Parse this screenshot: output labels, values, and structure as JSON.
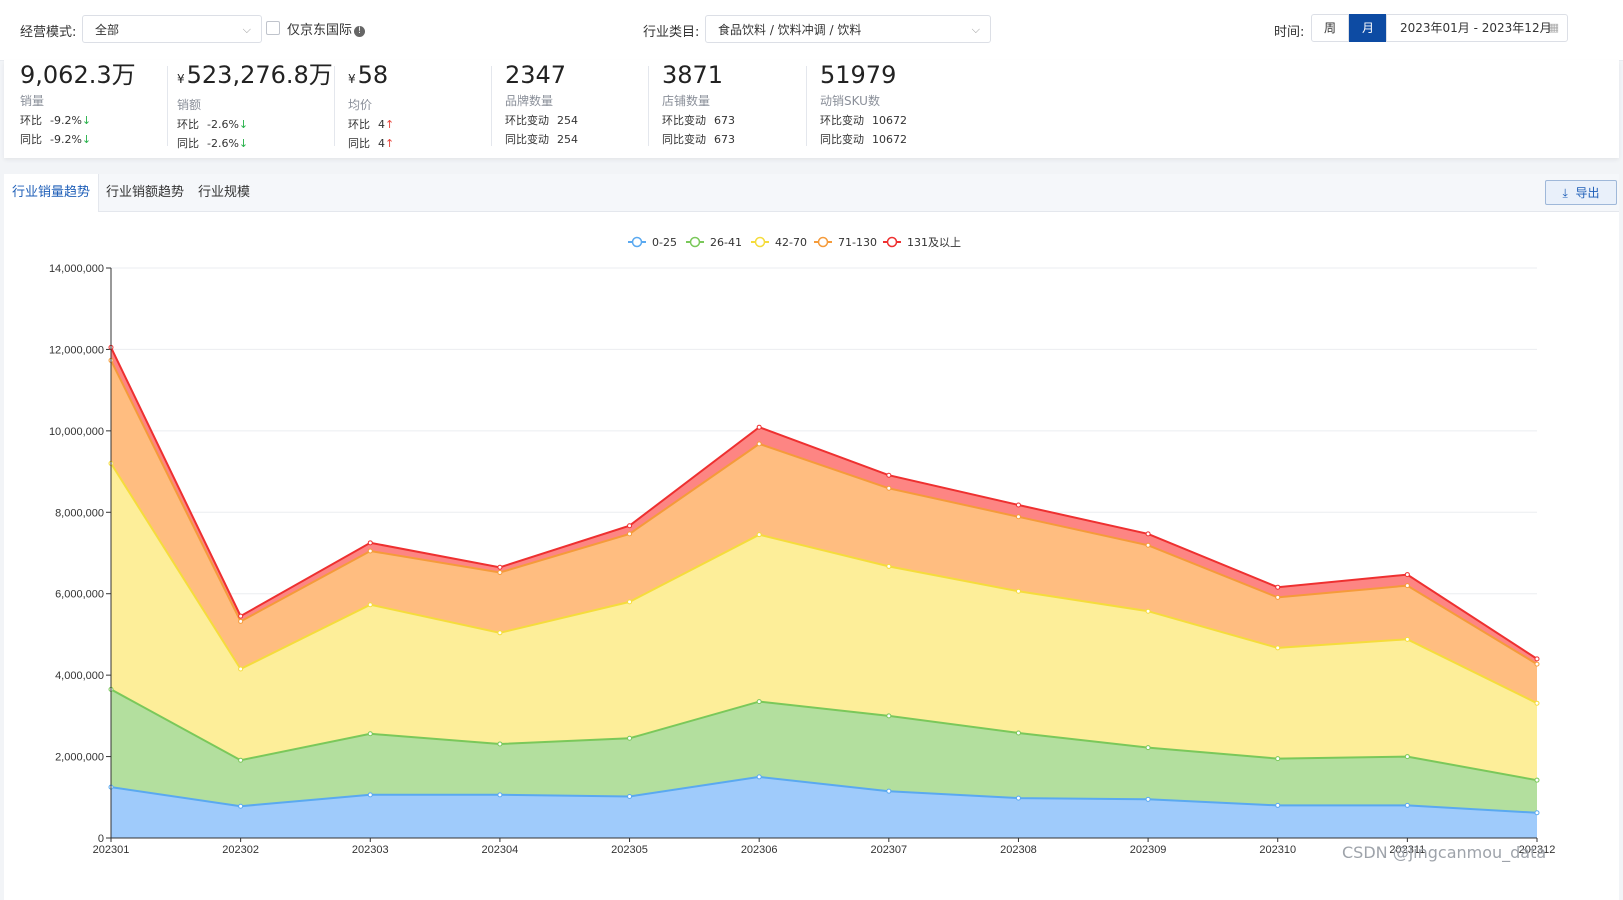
{
  "filters": {
    "mode_label": "经营模式:",
    "mode_value": "全部",
    "jd_intl_label": "仅京东国际",
    "category_label": "行业类目:",
    "category_value": "食品饮料 / 饮料冲调 / 饮料",
    "time_label": "时间:",
    "period_week": "周",
    "period_month": "月",
    "date_range": "2023年01月 - 2023年12月"
  },
  "stats": [
    {
      "value": "9,062.3万",
      "currency": "",
      "name": "销量",
      "r1_label": "环比",
      "r1_value": "-9.2%",
      "r1_dir": "↓",
      "r2_label": "同比",
      "r2_value": "-9.2%",
      "r2_dir": "↓"
    },
    {
      "value": "523,276.8万",
      "currency": "¥",
      "name": "销额",
      "r1_label": "环比",
      "r1_value": "-2.6%",
      "r1_dir": "↓",
      "r2_label": "同比",
      "r2_value": "-2.6%",
      "r2_dir": "↓"
    },
    {
      "value": "58",
      "currency": "¥",
      "name": "均价",
      "r1_label": "环比",
      "r1_value": "4",
      "r1_dir": "↑",
      "r2_label": "同比",
      "r2_value": "4",
      "r2_dir": "↑"
    },
    {
      "value": "2347",
      "currency": "",
      "name": "品牌数量",
      "r1_label": "环比变动",
      "r1_value": "254",
      "r1_dir": "",
      "r2_label": "同比变动",
      "r2_value": "254",
      "r2_dir": ""
    },
    {
      "value": "3871",
      "currency": "",
      "name": "店铺数量",
      "r1_label": "环比变动",
      "r1_value": "673",
      "r1_dir": "",
      "r2_label": "同比变动",
      "r2_value": "673",
      "r2_dir": ""
    },
    {
      "value": "51979",
      "currency": "",
      "name": "动销SKU数",
      "r1_label": "环比变动",
      "r1_value": "10672",
      "r1_dir": "",
      "r2_label": "同比变动",
      "r2_value": "10672",
      "r2_dir": ""
    }
  ],
  "tabs": [
    "行业销量趋势",
    "行业销额趋势",
    "行业规模"
  ],
  "export_label": "导出",
  "watermark": "CSDN @jingcanmou_data",
  "chart_data": {
    "type": "area",
    "stacked": true,
    "categories": [
      "202301",
      "202302",
      "202303",
      "202304",
      "202305",
      "202306",
      "202307",
      "202308",
      "202309",
      "202310",
      "202311",
      "202312"
    ],
    "ylim": [
      0,
      14000000
    ],
    "yticks": [
      0,
      2000000,
      4000000,
      6000000,
      8000000,
      10000000,
      12000000,
      14000000
    ],
    "ytick_labels": [
      "0",
      "2,000,000",
      "4,000,000",
      "6,000,000",
      "8,000,000",
      "10,000,000",
      "12,000,000",
      "14,000,000"
    ],
    "grid": true,
    "legend_position": "top-center",
    "series": [
      {
        "name": "0-25",
        "color": "#5aa9f0",
        "fill": "#9fcbfb",
        "values": [
          1250000,
          780000,
          1060000,
          1060000,
          1020000,
          1500000,
          1150000,
          980000,
          950000,
          800000,
          800000,
          620000
        ]
      },
      {
        "name": "26-41",
        "color": "#7ac85a",
        "fill": "#b3df9e",
        "values": [
          2400000,
          1130000,
          1500000,
          1250000,
          1430000,
          1850000,
          1850000,
          1600000,
          1270000,
          1150000,
          1200000,
          800000
        ]
      },
      {
        "name": "42-70",
        "color": "#f5dc3c",
        "fill": "#fdee99",
        "values": [
          5550000,
          2240000,
          3170000,
          2730000,
          3350000,
          4100000,
          3670000,
          3480000,
          3350000,
          2720000,
          2880000,
          1890000
        ]
      },
      {
        "name": "71-130",
        "color": "#f59b3a",
        "fill": "#ffbd80",
        "values": [
          2530000,
          1170000,
          1320000,
          1480000,
          1670000,
          2230000,
          1920000,
          1830000,
          1620000,
          1240000,
          1320000,
          960000
        ]
      },
      {
        "name": "131及以上",
        "color": "#ee3030",
        "fill": "#fd8583",
        "values": [
          320000,
          130000,
          200000,
          130000,
          200000,
          410000,
          320000,
          290000,
          280000,
          250000,
          270000,
          130000
        ]
      }
    ]
  }
}
